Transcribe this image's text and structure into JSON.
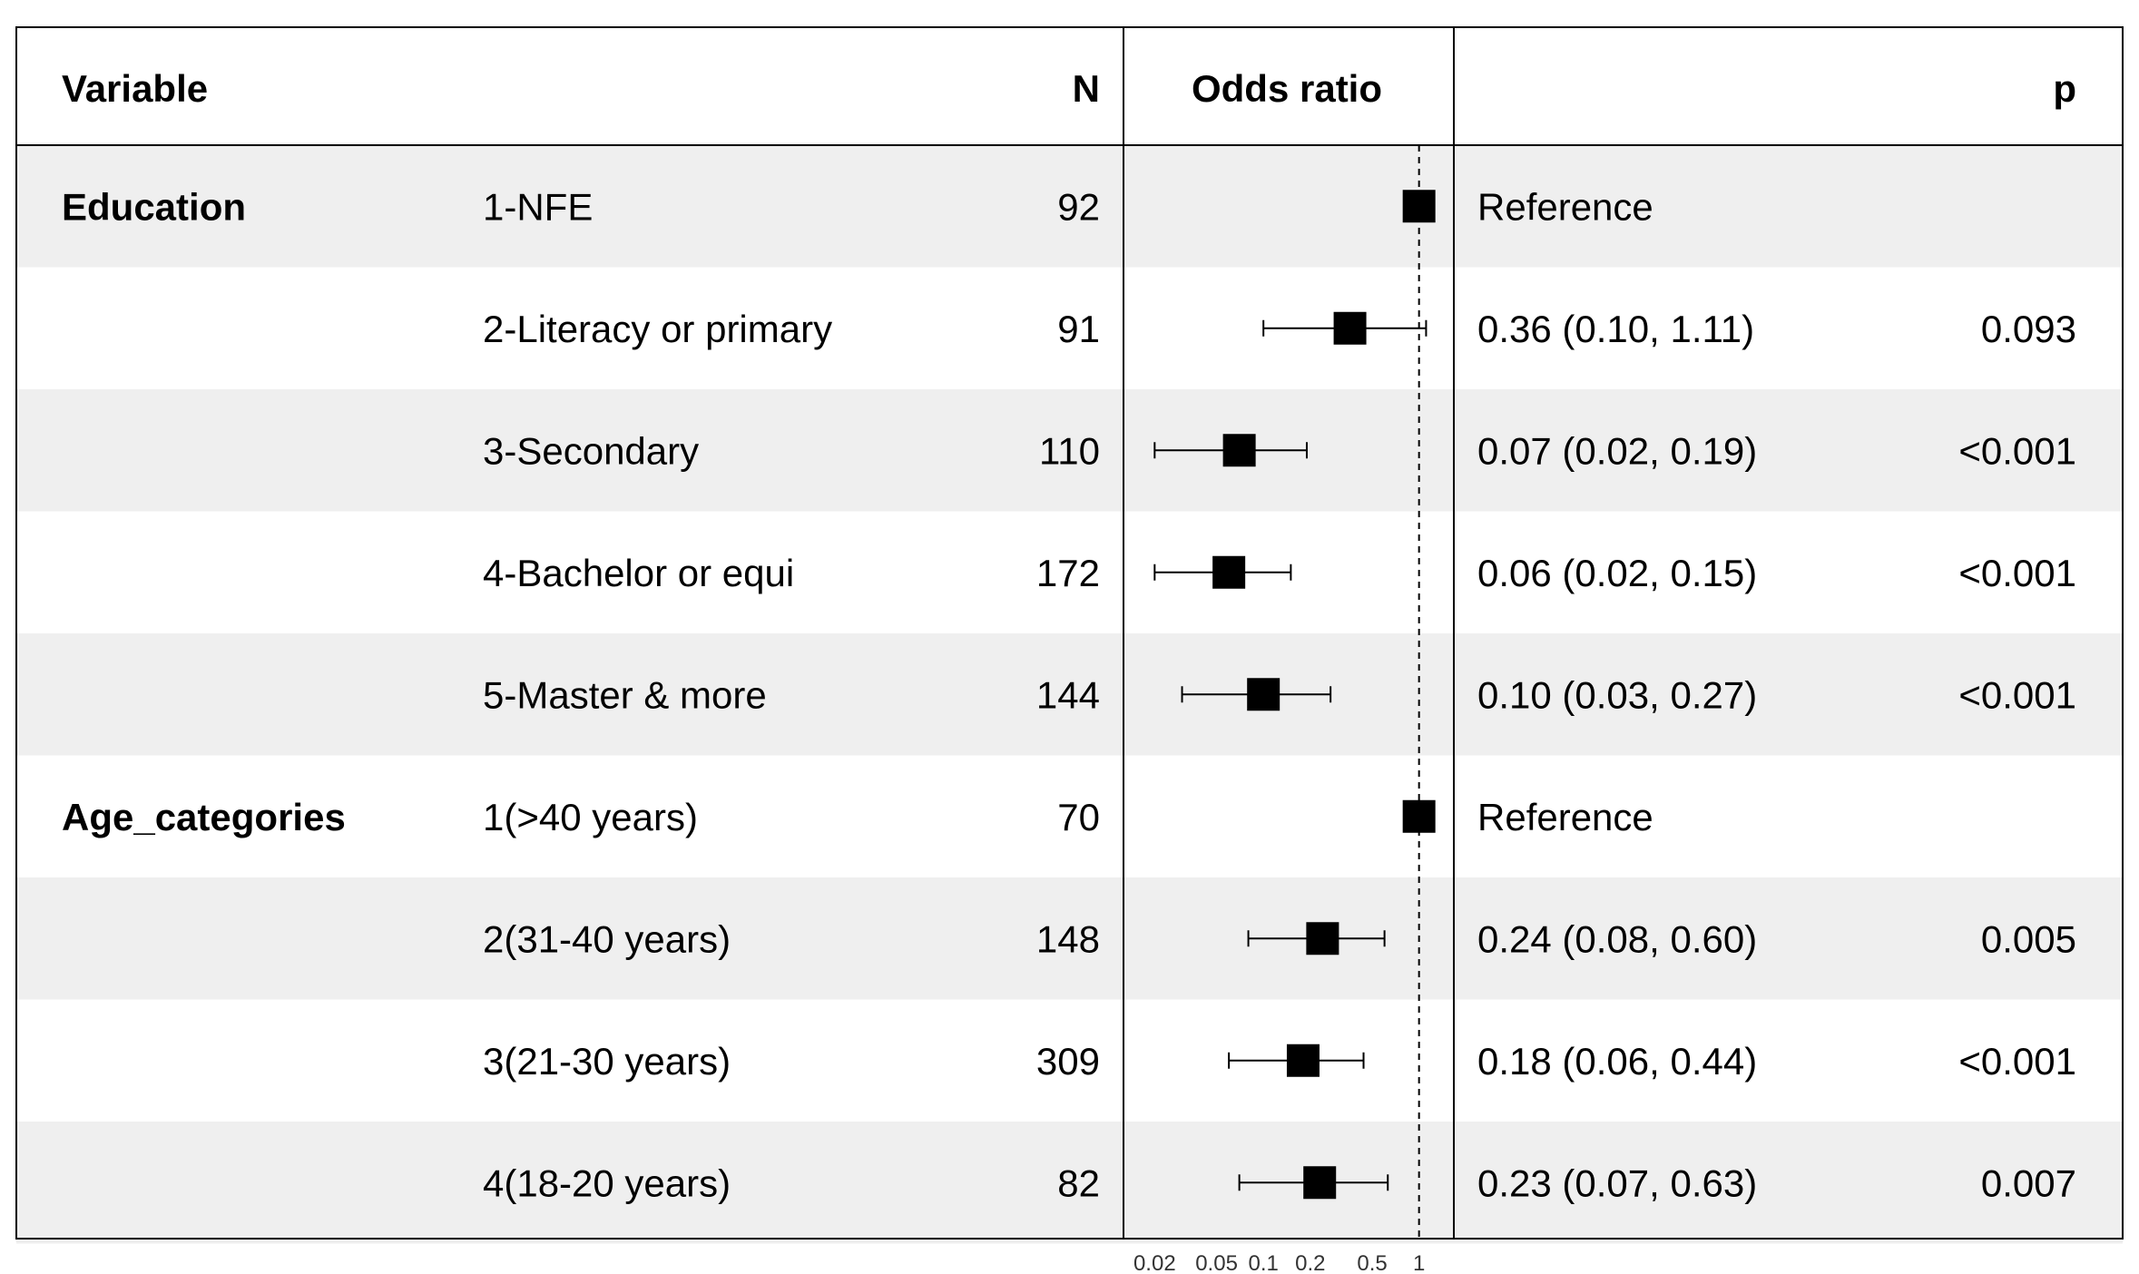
{
  "chart_data": {
    "type": "forest",
    "headers": {
      "variable": "Variable",
      "n": "N",
      "or": "Odds ratio",
      "p": "p"
    },
    "x_scale": "log",
    "reference_line": 1,
    "x_ticks": [
      {
        "value": 0.02,
        "label": "0.02"
      },
      {
        "value": 0.05,
        "label": "0.05"
      },
      {
        "value": 0.1,
        "label": "0.1"
      },
      {
        "value": 0.2,
        "label": "0.2"
      },
      {
        "value": 0.5,
        "label": "0.5"
      },
      {
        "value": 1,
        "label": "1"
      }
    ],
    "groups": [
      {
        "name": "Education",
        "row": 0
      },
      {
        "name": "Age_categories",
        "row": 5
      }
    ],
    "rows": [
      {
        "level": "1-NFE",
        "n": "92",
        "or": 1,
        "lo": null,
        "hi": null,
        "text": "Reference",
        "p": ""
      },
      {
        "level": "2-Literacy or primary",
        "n": "91",
        "or": 0.36,
        "lo": 0.1,
        "hi": 1.11,
        "text": "0.36 (0.10, 1.11)",
        "p": "0.093"
      },
      {
        "level": "3-Secondary",
        "n": "110",
        "or": 0.07,
        "lo": 0.02,
        "hi": 0.19,
        "text": "0.07 (0.02, 0.19)",
        "p": "<0.001"
      },
      {
        "level": "4-Bachelor or equi",
        "n": "172",
        "or": 0.06,
        "lo": 0.02,
        "hi": 0.15,
        "text": "0.06 (0.02, 0.15)",
        "p": "<0.001"
      },
      {
        "level": "5-Master & more",
        "n": "144",
        "or": 0.1,
        "lo": 0.03,
        "hi": 0.27,
        "text": "0.10 (0.03, 0.27)",
        "p": "<0.001"
      },
      {
        "level": "1(>40 years)",
        "n": "70",
        "or": 1,
        "lo": null,
        "hi": null,
        "text": "Reference",
        "p": ""
      },
      {
        "level": "2(31-40 years)",
        "n": "148",
        "or": 0.24,
        "lo": 0.08,
        "hi": 0.6,
        "text": "0.24 (0.08, 0.60)",
        "p": "0.005"
      },
      {
        "level": "3(21-30 years)",
        "n": "309",
        "or": 0.18,
        "lo": 0.06,
        "hi": 0.44,
        "text": "0.18 (0.06, 0.44)",
        "p": "<0.001"
      },
      {
        "level": "4(18-20 years)",
        "n": "82",
        "or": 0.23,
        "lo": 0.07,
        "hi": 0.63,
        "text": "0.23 (0.07, 0.63)",
        "p": "0.007"
      }
    ],
    "colors": {
      "band": "#efefef",
      "line": "#000000",
      "marker": "#000000"
    }
  }
}
